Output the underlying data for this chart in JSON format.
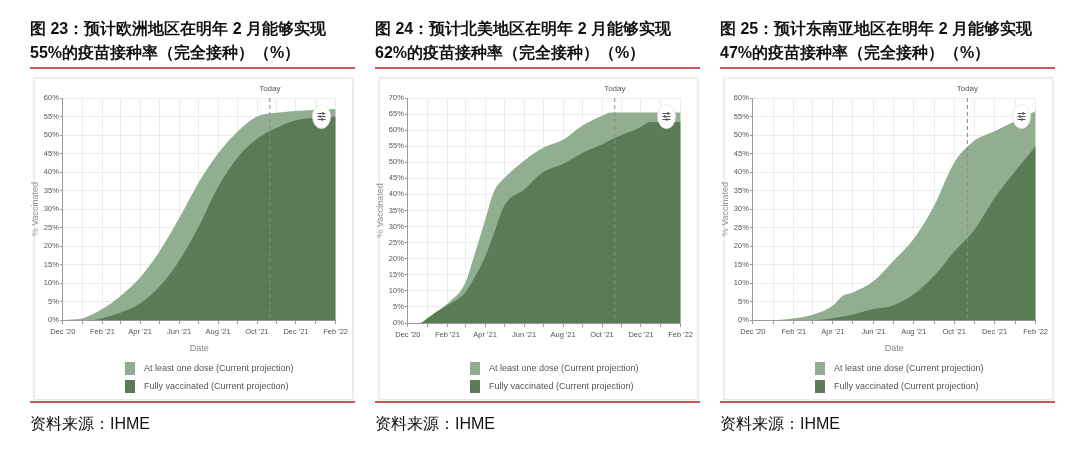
{
  "chart_data": [
    {
      "type": "area",
      "title": "图 23：预计欧洲地区在明年 2 月能够实现\n55%的疫苗接种率（完全接种）（%）",
      "xlabel": "Date",
      "ylabel": "% Vaccinated",
      "x": [
        "2020-12",
        "2021-01",
        "2021-01-15",
        "2021-02",
        "2021-03",
        "2021-04",
        "2021-05",
        "2021-06",
        "2021-07",
        "2021-08",
        "2021-09",
        "2021-10",
        "2021-11",
        "2021-12",
        "2022-02"
      ],
      "series": [
        {
          "name": "At least one dose (Current projection)",
          "color": "#91af90",
          "values": [
            0,
            0.5,
            1.5,
            3,
            6.5,
            11.5,
            18.5,
            27.5,
            37,
            45,
            51,
            55,
            56,
            56.5,
            57
          ]
        },
        {
          "name": "Fully vaccinated (Current projection)",
          "color": "#5b7a56",
          "values": [
            0,
            0,
            0,
            0.5,
            2,
            4.5,
            9,
            16,
            25,
            36,
            44,
            49,
            52,
            54,
            55
          ]
        }
      ],
      "xlim": [
        "2020-12",
        "2022-02"
      ],
      "xticks": [
        {
          "value": "2020-12",
          "label": "Dec '20"
        },
        {
          "value": "2021-01",
          "label": null
        },
        {
          "value": "2021-02",
          "label": "Feb '21"
        },
        {
          "value": "2021-03",
          "label": null
        },
        {
          "value": "2021-04",
          "label": "Apr '21"
        },
        {
          "value": "2021-05",
          "label": null
        },
        {
          "value": "2021-06",
          "label": "Jun '21"
        },
        {
          "value": "2021-07",
          "label": null
        },
        {
          "value": "2021-08",
          "label": "Aug '21"
        },
        {
          "value": "2021-09",
          "label": null
        },
        {
          "value": "2021-10",
          "label": "Oct '21"
        },
        {
          "value": "2021-11",
          "label": null
        },
        {
          "value": "2021-12",
          "label": "Dec '21"
        },
        {
          "value": "2022-01",
          "label": null
        },
        {
          "value": "2022-02",
          "label": "Feb '22"
        }
      ],
      "ylim": [
        0,
        60
      ],
      "yticks": [
        {
          "value": 0,
          "label": "0%"
        },
        {
          "value": 5,
          "label": "5%"
        },
        {
          "value": 10,
          "label": "10%"
        },
        {
          "value": 15,
          "label": "15%"
        },
        {
          "value": 20,
          "label": "20%"
        },
        {
          "value": 25,
          "label": "25%"
        },
        {
          "value": 30,
          "label": "30%"
        },
        {
          "value": 35,
          "label": "35%"
        },
        {
          "value": 40,
          "label": "40%"
        },
        {
          "value": 45,
          "label": "45%"
        },
        {
          "value": 50,
          "label": "50%"
        },
        {
          "value": 55,
          "label": "55%"
        },
        {
          "value": 60,
          "label": "60%"
        }
      ],
      "ref_lines": [
        {
          "axis": "x",
          "value": "2021-10-21",
          "label": "Today",
          "color": "#8a8a8a",
          "line_style": "dashed"
        }
      ],
      "grid": true,
      "legend": "bottom",
      "annotations": [
        "资料来源：IHME"
      ]
    },
    {
      "type": "area",
      "title": "图 24：预计北美地区在明年 2 月能够实现\n62%的疫苗接种率（完全接种）（%）",
      "ylabel": "% Vaccinated",
      "x": [
        "2020-12",
        "2020-12-20",
        "2021-01",
        "2021-01-15",
        "2021-02",
        "2021-03",
        "2021-03-15",
        "2021-04",
        "2021-04-15",
        "2021-05",
        "2021-06",
        "2021-07",
        "2021-08",
        "2021-09",
        "2021-10",
        "2021-10-15",
        "2021-11",
        "2021-12",
        "2021-12-15",
        "2022-02"
      ],
      "series": [
        {
          "name": "At least one dose (Current projection)",
          "color": "#91af90",
          "values": [
            0,
            0,
            1.5,
            3.5,
            6,
            12.5,
            21,
            32,
            41,
            45,
            50.5,
            54.5,
            57,
            61.5,
            64.5,
            65.5,
            65.5,
            65.5,
            65.5,
            65.5
          ]
        },
        {
          "name": "Fully vaccinated (Current projection)",
          "color": "#5b7a56",
          "values": [
            0,
            0,
            1.5,
            3.5,
            5.5,
            9.5,
            14,
            20.5,
            28,
            36.5,
            41.5,
            47,
            49.5,
            53,
            55.5,
            57,
            58.5,
            61,
            62.5,
            62.5
          ]
        }
      ],
      "xlim": [
        "2020-12",
        "2022-02"
      ],
      "xticks": [
        {
          "value": "2020-12",
          "label": "Dec '20"
        },
        {
          "value": "2021-01",
          "label": null
        },
        {
          "value": "2021-02",
          "label": "Feb '21"
        },
        {
          "value": "2021-03",
          "label": null
        },
        {
          "value": "2021-04",
          "label": "Apr '21"
        },
        {
          "value": "2021-05",
          "label": null
        },
        {
          "value": "2021-06",
          "label": "Jun '21"
        },
        {
          "value": "2021-07",
          "label": null
        },
        {
          "value": "2021-08",
          "label": "Aug '21"
        },
        {
          "value": "2021-09",
          "label": null
        },
        {
          "value": "2021-10",
          "label": "Oct '21"
        },
        {
          "value": "2021-11",
          "label": null
        },
        {
          "value": "2021-12",
          "label": "Dec '21"
        },
        {
          "value": "2022-01",
          "label": null
        },
        {
          "value": "2022-02",
          "label": "Feb '22"
        }
      ],
      "ylim": [
        0,
        70
      ],
      "yticks": [
        {
          "value": 0,
          "label": "0%"
        },
        {
          "value": 5,
          "label": "5%"
        },
        {
          "value": 10,
          "label": "10%"
        },
        {
          "value": 15,
          "label": "15%"
        },
        {
          "value": 20,
          "label": "20%"
        },
        {
          "value": 25,
          "label": "25%"
        },
        {
          "value": 30,
          "label": "30%"
        },
        {
          "value": 35,
          "label": "35%"
        },
        {
          "value": 40,
          "label": "40%"
        },
        {
          "value": 45,
          "label": "45%"
        },
        {
          "value": 50,
          "label": "50%"
        },
        {
          "value": 55,
          "label": "55%"
        },
        {
          "value": 60,
          "label": "60%"
        },
        {
          "value": 65,
          "label": "65%"
        },
        {
          "value": 70,
          "label": "70%"
        }
      ],
      "ref_lines": [
        {
          "axis": "x",
          "value": "2021-10-21",
          "label": "Today",
          "color": "#8a8a8a",
          "line_style": "dashed"
        }
      ],
      "grid": true,
      "legend": "bottom",
      "annotations": [
        "资料来源：IHME"
      ]
    },
    {
      "type": "area",
      "title": "图 25：预计东南亚地区在明年 2 月能够实现\n47%的疫苗接种率（完全接种）（%）",
      "xlabel": "Date",
      "ylabel": "% Vaccinated",
      "x": [
        "2020-12",
        "2021-01",
        "2021-02",
        "2021-03",
        "2021-04",
        "2021-04-15",
        "2021-05",
        "2021-06",
        "2021-07",
        "2021-08",
        "2021-09",
        "2021-10",
        "2021-11",
        "2021-12",
        "2022-02"
      ],
      "series": [
        {
          "name": "At least one dose (Current projection)",
          "color": "#91af90",
          "values": [
            0,
            0,
            0.5,
            1.5,
            4,
            6.5,
            7.5,
            10.5,
            16,
            22,
            31,
            42.5,
            48.5,
            51,
            56.5
          ]
        },
        {
          "name": "Fully vaccinated (Current projection)",
          "color": "#5b7a56",
          "values": [
            0,
            0,
            0,
            0,
            0.5,
            1,
            1.5,
            3,
            4,
            7,
            12,
            18.5,
            24.5,
            33,
            47
          ]
        }
      ],
      "xlim": [
        "2020-12",
        "2022-02"
      ],
      "xticks": [
        {
          "value": "2020-12",
          "label": "Dec '20"
        },
        {
          "value": "2021-01",
          "label": null
        },
        {
          "value": "2021-02",
          "label": "Feb '21"
        },
        {
          "value": "2021-03",
          "label": null
        },
        {
          "value": "2021-04",
          "label": "Apr '21"
        },
        {
          "value": "2021-05",
          "label": null
        },
        {
          "value": "2021-06",
          "label": "Jun '21"
        },
        {
          "value": "2021-07",
          "label": null
        },
        {
          "value": "2021-08",
          "label": "Aug '21"
        },
        {
          "value": "2021-09",
          "label": null
        },
        {
          "value": "2021-10",
          "label": "Oct '21"
        },
        {
          "value": "2021-11",
          "label": null
        },
        {
          "value": "2021-12",
          "label": "Dec '21"
        },
        {
          "value": "2022-01",
          "label": null
        },
        {
          "value": "2022-02",
          "label": "Feb '22"
        }
      ],
      "ylim": [
        0,
        60
      ],
      "yticks": [
        {
          "value": 0,
          "label": "0%"
        },
        {
          "value": 5,
          "label": "5%"
        },
        {
          "value": 10,
          "label": "10%"
        },
        {
          "value": 15,
          "label": "15%"
        },
        {
          "value": 20,
          "label": "20%"
        },
        {
          "value": 25,
          "label": "25%"
        },
        {
          "value": 30,
          "label": "30%"
        },
        {
          "value": 35,
          "label": "35%"
        },
        {
          "value": 40,
          "label": "40%"
        },
        {
          "value": 45,
          "label": "45%"
        },
        {
          "value": 50,
          "label": "50%"
        },
        {
          "value": 55,
          "label": "55%"
        },
        {
          "value": 60,
          "label": "60%"
        }
      ],
      "ref_lines": [
        {
          "axis": "x",
          "value": "2021-10-21",
          "label": "Today",
          "color": "#8a8a8a",
          "line_style": "dashed"
        }
      ],
      "grid": true,
      "legend": "bottom",
      "annotations": [
        "资料来源：IHME"
      ]
    }
  ]
}
